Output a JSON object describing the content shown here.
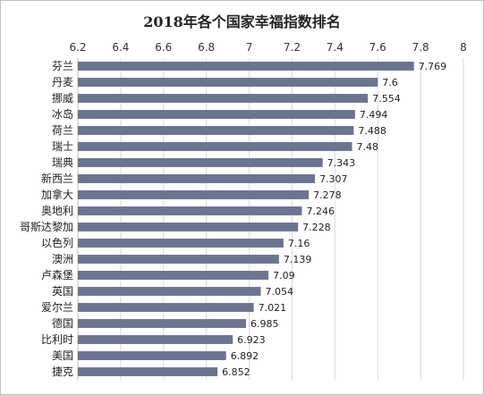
{
  "chart_data": {
    "type": "bar",
    "orientation": "horizontal",
    "title": "2018年各个国家幸福指数排名",
    "xlabel": "",
    "ylabel": "",
    "xlim": [
      6.2,
      8
    ],
    "ticks": [
      "6.2",
      "6.4",
      "6.6",
      "6.8",
      "7",
      "7.2",
      "7.4",
      "7.6",
      "7.8",
      "8"
    ],
    "axis_position": "top",
    "grid": true,
    "legend": "none",
    "bar_color": "#6b7490",
    "categories": [
      "芬兰",
      "丹麦",
      "挪威",
      "冰岛",
      "荷兰",
      "瑞士",
      "瑞典",
      "新西兰",
      "加拿大",
      "奥地利",
      "哥斯达黎加",
      "以色列",
      "澳洲",
      "卢森堡",
      "英国",
      "爱尔兰",
      "德国",
      "比利时",
      "美国",
      "捷克"
    ],
    "values": [
      7.769,
      7.6,
      7.554,
      7.494,
      7.488,
      7.48,
      7.343,
      7.307,
      7.278,
      7.246,
      7.228,
      7.16,
      7.139,
      7.09,
      7.054,
      7.021,
      6.985,
      6.923,
      6.892,
      6.852
    ],
    "value_labels": [
      "7.769",
      "7.6",
      "7.554",
      "7.494",
      "7.488",
      "7.48",
      "7.343",
      "7.307",
      "7.278",
      "7.246",
      "7.228",
      "7.16",
      "7.139",
      "7.09",
      "7.054",
      "7.021",
      "6.985",
      "6.923",
      "6.892",
      "6.852"
    ]
  }
}
